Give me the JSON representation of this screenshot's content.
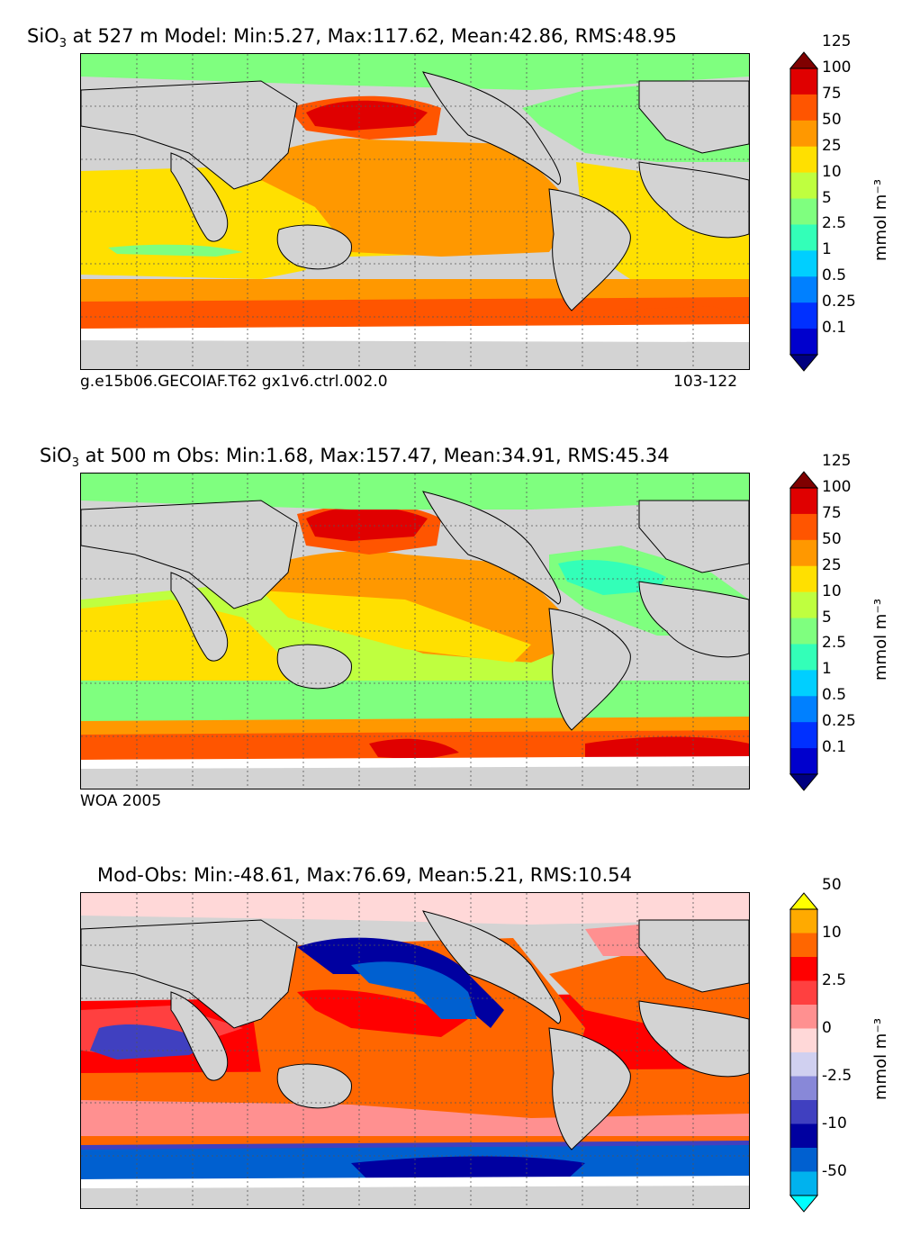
{
  "panels": [
    {
      "title_species": "SiO",
      "title_sub": "3",
      "title_rest": " at 527 m Model: Min:5.27, Max:117.62, Mean:42.86, RMS:48.95",
      "foot_left": "g.e15b06.GECOIAF.T62 gx1v6.ctrl.002.0",
      "foot_right": "103-122",
      "unit": "mmol m⁻³"
    },
    {
      "title_species": "SiO",
      "title_sub": "3",
      "title_rest": " at 500 m Obs: Min:1.68, Max:157.47, Mean:34.91, RMS:45.34",
      "foot_left": "WOA 2005",
      "foot_right": "",
      "unit": "mmol m⁻³"
    },
    {
      "title_species": "",
      "title_sub": "",
      "title_rest": "Mod-Obs: Min:-48.61, Max:76.69, Mean:5.21, RMS:10.54",
      "foot_left": "",
      "foot_right": "",
      "unit": "mmol m⁻³"
    }
  ],
  "chart_data": [
    {
      "type": "heatmap",
      "title": "SiO3 at 527 m Model: Min:5.27, Max:117.62, Mean:42.86, RMS:48.95",
      "stats": {
        "min": 5.27,
        "max": 117.62,
        "mean": 42.86,
        "rms": 48.95
      },
      "colorbar_ticks": [
        "0.1",
        "0.25",
        "0.5",
        "1",
        "2.5",
        "5",
        "10",
        "25",
        "50",
        "75",
        "100",
        "125"
      ],
      "colorbar_colors": [
        "#00007f",
        "#0000cd",
        "#0030ff",
        "#0080ff",
        "#00cfff",
        "#33ffb8",
        "#7fff7f",
        "#bfff3f",
        "#ffe000",
        "#ff9800",
        "#ff5500",
        "#e00000",
        "#7f0000"
      ],
      "colorbar_label": "mmol m⁻³"
    },
    {
      "type": "heatmap",
      "title": "SiO3 at 500 m Obs: Min:1.68, Max:157.47, Mean:34.91, RMS:45.34",
      "stats": {
        "min": 1.68,
        "max": 157.47,
        "mean": 34.91,
        "rms": 45.34
      },
      "colorbar_ticks": [
        "0.1",
        "0.25",
        "0.5",
        "1",
        "2.5",
        "5",
        "10",
        "25",
        "50",
        "75",
        "100",
        "125"
      ],
      "colorbar_colors": [
        "#00007f",
        "#0000cd",
        "#0030ff",
        "#0080ff",
        "#00cfff",
        "#33ffb8",
        "#7fff7f",
        "#bfff3f",
        "#ffe000",
        "#ff9800",
        "#ff5500",
        "#e00000",
        "#7f0000"
      ],
      "colorbar_label": "mmol m⁻³"
    },
    {
      "type": "heatmap",
      "title": "Mod-Obs: Min:-48.61, Max:76.69, Mean:5.21, RMS:10.54",
      "stats": {
        "min": -48.61,
        "max": 76.69,
        "mean": 5.21,
        "rms": 10.54
      },
      "colorbar_ticks": [
        "-50",
        "-10",
        "-2.5",
        "0",
        "2.5",
        "10",
        "50"
      ],
      "colorbar_colors": [
        "#00ffff",
        "#00b2ee",
        "#0060d0",
        "#0000a0",
        "#4040c0",
        "#8888d8",
        "#d0d0f0",
        "#ffd8d8",
        "#ff9090",
        "#ff4040",
        "#ff0000",
        "#ff6600",
        "#ffaa00",
        "#ffff00"
      ],
      "colorbar_label": "mmol m⁻³"
    }
  ]
}
